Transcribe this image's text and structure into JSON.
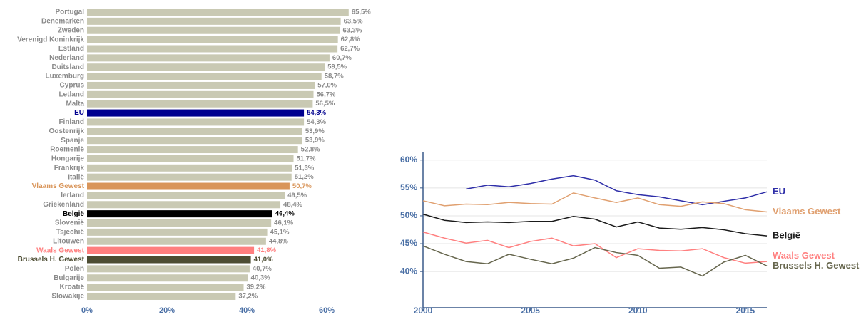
{
  "chart_data": [
    {
      "type": "hbar",
      "categories": [
        "Portugal",
        "Denemarken",
        "Zweden",
        "Verenigd Koninkrijk",
        "Estland",
        "Nederland",
        "Duitsland",
        "Luxemburg",
        "Cyprus",
        "Letland",
        "Malta",
        "EU",
        "Finland",
        "Oostenrijk",
        "Spanje",
        "Roemenië",
        "Hongarije",
        "Frankrijk",
        "Italië",
        "Vlaams Gewest",
        "Ierland",
        "Griekenland",
        "België",
        "Slovenië",
        "Tsjechië",
        "Litouwen",
        "Waals Gewest",
        "Brussels H. Gewest",
        "Polen",
        "Bulgarije",
        "Kroatië",
        "Slowakije"
      ],
      "values": [
        65.5,
        63.5,
        63.3,
        62.8,
        62.7,
        60.7,
        59.5,
        58.7,
        57.0,
        56.7,
        56.5,
        54.3,
        54.3,
        53.9,
        53.9,
        52.8,
        51.7,
        51.3,
        51.2,
        50.7,
        49.5,
        48.4,
        46.4,
        46.1,
        45.1,
        44.8,
        41.8,
        41.0,
        40.7,
        40.3,
        39.2,
        37.2
      ],
      "value_labels": [
        "65,5%",
        "63,5%",
        "63,3%",
        "62,8%",
        "62,7%",
        "60,7%",
        "59,5%",
        "58,7%",
        "57,0%",
        "56,7%",
        "56,5%",
        "54,3%",
        "54,3%",
        "53,9%",
        "53,9%",
        "52,8%",
        "51,7%",
        "51,3%",
        "51,2%",
        "50,7%",
        "49,5%",
        "48,4%",
        "46,4%",
        "46,1%",
        "45,1%",
        "44,8%",
        "41,8%",
        "41,0%",
        "40,7%",
        "40,3%",
        "39,2%",
        "37,2%"
      ],
      "color": "#c9c9b3",
      "colors": [
        "#c9c9b3",
        "#c9c9b3",
        "#c9c9b3",
        "#c9c9b3",
        "#c9c9b3",
        "#c9c9b3",
        "#c9c9b3",
        "#c9c9b3",
        "#c9c9b3",
        "#c9c9b3",
        "#c9c9b3",
        "#00008f",
        "#c9c9b3",
        "#c9c9b3",
        "#c9c9b3",
        "#c9c9b3",
        "#c9c9b3",
        "#c9c9b3",
        "#c9c9b3",
        "#d9955a",
        "#c9c9b3",
        "#c9c9b3",
        "#000000",
        "#c9c9b3",
        "#c9c9b3",
        "#c9c9b3",
        "#ff7f7f",
        "#4d4d33",
        "#c9c9b3",
        "#c9c9b3",
        "#c9c9b3",
        "#c9c9b3"
      ],
      "xlim": [
        0,
        70
      ],
      "xticks": [
        {
          "value": 0,
          "label": "0%"
        },
        {
          "value": 20,
          "label": "20%"
        },
        {
          "value": 40,
          "label": "40%"
        },
        {
          "value": 60,
          "label": "60%"
        }
      ]
    },
    {
      "type": "line",
      "x": [
        2000,
        2001,
        2002,
        2003,
        2004,
        2005,
        2006,
        2007,
        2008,
        2009,
        2010,
        2011,
        2012,
        2013,
        2014,
        2015,
        2016
      ],
      "series": [
        {
          "name": "EU",
          "color": "#2e2ea8",
          "values": [
            null,
            null,
            54.8,
            55.5,
            55.2,
            55.8,
            56.6,
            57.2,
            56.4,
            54.5,
            53.8,
            53.4,
            52.7,
            52.0,
            52.6,
            53.2,
            54.3
          ]
        },
        {
          "name": "Vlaams Gewest",
          "color": "#e0a070",
          "values": [
            52.7,
            51.8,
            52.1,
            52.0,
            52.4,
            52.2,
            52.1,
            54.1,
            53.2,
            52.4,
            53.2,
            52.0,
            51.7,
            52.5,
            52.2,
            51.1,
            50.7
          ]
        },
        {
          "name": "België",
          "color": "#1a1a1a",
          "values": [
            50.3,
            49.2,
            48.8,
            48.9,
            48.8,
            49.0,
            49.0,
            49.9,
            49.4,
            48.0,
            48.9,
            47.8,
            47.6,
            47.9,
            47.5,
            46.8,
            46.4
          ]
        },
        {
          "name": "Waals Gewest",
          "color": "#ff8080",
          "values": [
            47.1,
            46.0,
            45.1,
            45.6,
            44.3,
            45.4,
            46.0,
            44.6,
            45.0,
            42.5,
            44.1,
            43.8,
            43.7,
            44.1,
            42.5,
            41.5,
            41.8
          ]
        },
        {
          "name": "Brussels H. Gewest",
          "color": "#66664d",
          "values": [
            44.6,
            43.1,
            41.8,
            41.4,
            43.1,
            42.2,
            41.4,
            42.4,
            44.3,
            43.4,
            42.9,
            40.6,
            40.8,
            39.2,
            41.7,
            42.9,
            41.0
          ]
        }
      ],
      "xlim": [
        2000,
        2016
      ],
      "xticks": [
        2000,
        2005,
        2010,
        2015
      ],
      "ylim": [
        33.5,
        61.5
      ],
      "yticks": [
        {
          "value": 40,
          "label": "40%"
        },
        {
          "value": 45,
          "label": "45%"
        },
        {
          "value": 50,
          "label": "50%"
        },
        {
          "value": 55,
          "label": "55%"
        },
        {
          "value": 60,
          "label": "60%"
        }
      ],
      "grid": true
    }
  ]
}
